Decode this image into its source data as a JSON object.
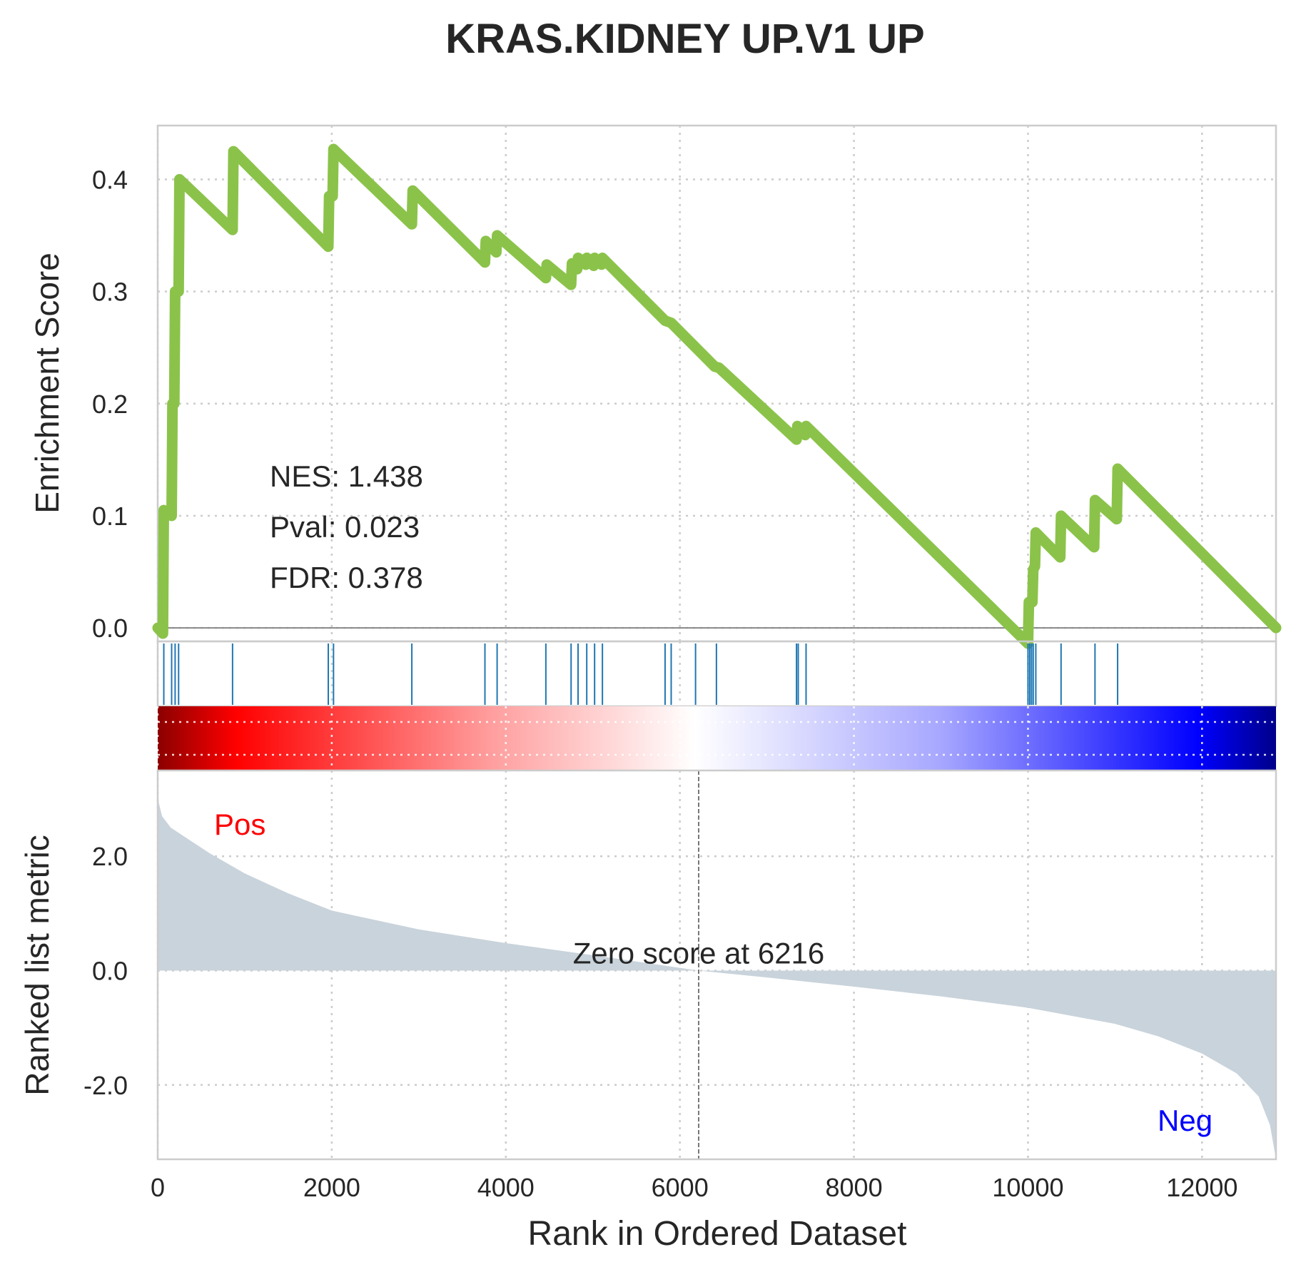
{
  "chart_data": {
    "type": "line",
    "title": "KRAS.KIDNEY UP.V1 UP",
    "xlabel": "Rank in Ordered Dataset",
    "xlim": [
      0,
      12850
    ],
    "x_ticks": [
      "0",
      "2000",
      "4000",
      "6000",
      "8000",
      "10000",
      "12000"
    ],
    "x_tick_values": [
      0,
      2000,
      4000,
      6000,
      8000,
      10000,
      12000
    ],
    "es_panel": {
      "ylabel": "Enrichment Score",
      "ylim": [
        -0.012,
        0.448
      ],
      "y_ticks": [
        "0.0",
        "0.1",
        "0.2",
        "0.3",
        "0.4"
      ],
      "y_tick_values": [
        0,
        0.1,
        0.2,
        0.3,
        0.4
      ],
      "line_color": "#8bc34a",
      "points": [
        [
          0,
          0
        ],
        [
          60,
          -0.005
        ],
        [
          70,
          0.105
        ],
        [
          160,
          0.1
        ],
        [
          170,
          0.2
        ],
        [
          190,
          0.2
        ],
        [
          200,
          0.3
        ],
        [
          240,
          0.3
        ],
        [
          250,
          0.4
        ],
        [
          860,
          0.355
        ],
        [
          870,
          0.425
        ],
        [
          1960,
          0.34
        ],
        [
          1970,
          0.385
        ],
        [
          2010,
          0.385
        ],
        [
          2020,
          0.427
        ],
        [
          2920,
          0.36
        ],
        [
          2930,
          0.39
        ],
        [
          3760,
          0.326
        ],
        [
          3770,
          0.345
        ],
        [
          3890,
          0.335
        ],
        [
          3900,
          0.35
        ],
        [
          4460,
          0.312
        ],
        [
          4470,
          0.324
        ],
        [
          4750,
          0.306
        ],
        [
          4760,
          0.325
        ],
        [
          4820,
          0.32
        ],
        [
          4830,
          0.33
        ],
        [
          4920,
          0.324
        ],
        [
          4930,
          0.33
        ],
        [
          5010,
          0.323
        ],
        [
          5020,
          0.33
        ],
        [
          5100,
          0.324
        ],
        [
          5110,
          0.33
        ],
        [
          5830,
          0.274
        ],
        [
          5900,
          0.272
        ],
        [
          6400,
          0.233
        ],
        [
          6450,
          0.232
        ],
        [
          7340,
          0.168
        ],
        [
          7350,
          0.18
        ],
        [
          7440,
          0.172
        ],
        [
          7450,
          0.18
        ],
        [
          10000,
          -0.014
        ],
        [
          10010,
          0.023
        ],
        [
          10050,
          0.023
        ],
        [
          10060,
          0.052
        ],
        [
          10080,
          0.055
        ],
        [
          10090,
          0.085
        ],
        [
          10370,
          0.063
        ],
        [
          10380,
          0.1
        ],
        [
          10760,
          0.072
        ],
        [
          10770,
          0.114
        ],
        [
          11020,
          0.097
        ],
        [
          11030,
          0.142
        ],
        [
          12850,
          0
        ]
      ]
    },
    "hits": [
      70,
      160,
      200,
      240,
      860,
      1960,
      2020,
      2920,
      3760,
      3900,
      4460,
      4750,
      4830,
      4930,
      5020,
      5110,
      5830,
      5900,
      6180,
      6420,
      7340,
      7360,
      7450,
      10000,
      10020,
      10040,
      10060,
      10090,
      10380,
      10770,
      11030
    ],
    "hit_color": "#1f77b4",
    "heatmap_colors": [
      "#8b0000",
      "#ff0000",
      "#ffffff",
      "#0000ff",
      "#00008b"
    ],
    "rank_panel": {
      "ylabel": "Ranked list metric",
      "ylim": [
        -3.3,
        3.5
      ],
      "y_ticks": [
        "2.0",
        "0.0",
        "-2.0"
      ],
      "y_tick_values": [
        2,
        0,
        -2
      ],
      "fill_color": "#c9d3db",
      "zero_cross": 6216,
      "zero_label": "Zero score at 6216",
      "pos_label": "Pos",
      "neg_label": "Neg",
      "pos_color": "#ff0000",
      "neg_color": "#0000ff",
      "curve": [
        [
          0,
          3.3
        ],
        [
          10,
          2.95
        ],
        [
          50,
          2.7
        ],
        [
          150,
          2.5
        ],
        [
          300,
          2.35
        ],
        [
          600,
          2.05
        ],
        [
          1000,
          1.7
        ],
        [
          1500,
          1.35
        ],
        [
          2000,
          1.05
        ],
        [
          3000,
          0.72
        ],
        [
          4000,
          0.48
        ],
        [
          5000,
          0.27
        ],
        [
          6216,
          0
        ],
        [
          7000,
          -0.12
        ],
        [
          8000,
          -0.28
        ],
        [
          9000,
          -0.45
        ],
        [
          10000,
          -0.65
        ],
        [
          11000,
          -0.93
        ],
        [
          11500,
          -1.15
        ],
        [
          12000,
          -1.45
        ],
        [
          12400,
          -1.8
        ],
        [
          12650,
          -2.2
        ],
        [
          12780,
          -2.7
        ],
        [
          12850,
          -3.3
        ]
      ]
    }
  },
  "stats": {
    "nes": "NES: 1.438",
    "pval": "Pval: 0.023",
    "fdr": "FDR: 0.378"
  }
}
